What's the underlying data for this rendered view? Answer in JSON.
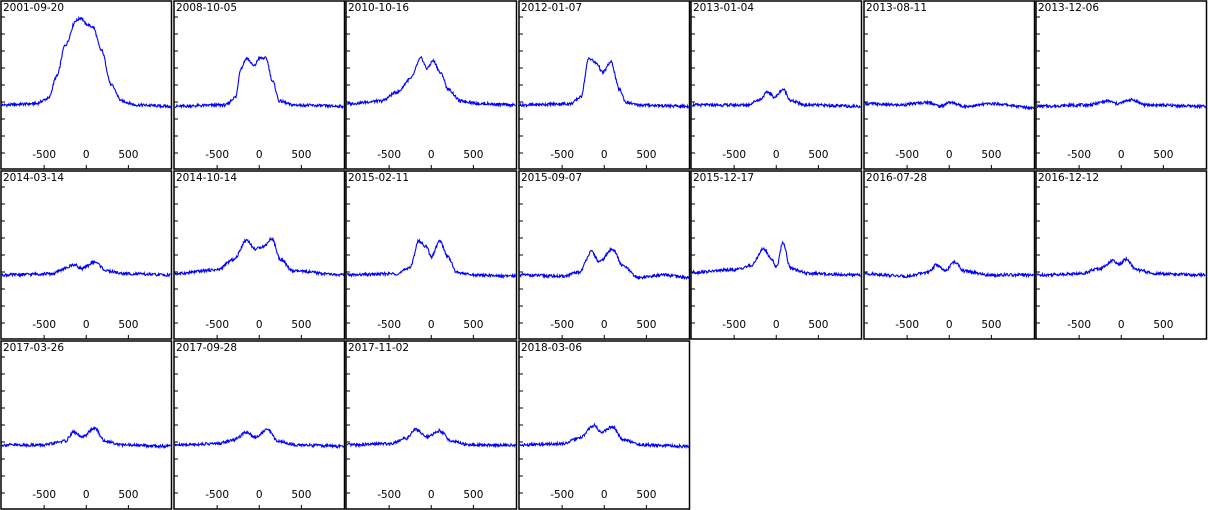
{
  "chart_data": {
    "type": "line",
    "color": "#0000ff",
    "xlim": [
      -1000,
      1000
    ],
    "ylim": [
      0,
      1
    ],
    "xticks": [
      -500,
      0,
      500
    ],
    "xtick_labels": [
      "-500",
      "0",
      "500"
    ],
    "panels": [
      {
        "title": "2001-09-20",
        "series": [
          {
            "values": [
              [
                -1000,
                0.3
              ],
              [
                -600,
                0.31
              ],
              [
                -450,
                0.35
              ],
              [
                -350,
                0.52
              ],
              [
                -250,
                0.76
              ],
              [
                -120,
                0.95
              ],
              [
                -60,
                0.97
              ],
              [
                0,
                0.92
              ],
              [
                80,
                0.9
              ],
              [
                180,
                0.72
              ],
              [
                300,
                0.45
              ],
              [
                420,
                0.33
              ],
              [
                600,
                0.3
              ],
              [
                1000,
                0.29
              ]
            ]
          }
        ]
      },
      {
        "title": "2008-10-05",
        "series": [
          {
            "values": [
              [
                -1000,
                0.29
              ],
              [
                -400,
                0.3
              ],
              [
                -280,
                0.36
              ],
              [
                -220,
                0.58
              ],
              [
                -150,
                0.66
              ],
              [
                -60,
                0.6
              ],
              [
                0,
                0.66
              ],
              [
                80,
                0.66
              ],
              [
                160,
                0.48
              ],
              [
                240,
                0.33
              ],
              [
                400,
                0.3
              ],
              [
                1000,
                0.29
              ]
            ]
          }
        ]
      },
      {
        "title": "2010-10-16",
        "series": [
          {
            "values": [
              [
                -1000,
                0.31
              ],
              [
                -600,
                0.33
              ],
              [
                -400,
                0.4
              ],
              [
                -250,
                0.5
              ],
              [
                -120,
                0.66
              ],
              [
                -50,
                0.58
              ],
              [
                20,
                0.64
              ],
              [
                120,
                0.54
              ],
              [
                200,
                0.42
              ],
              [
                350,
                0.33
              ],
              [
                600,
                0.31
              ],
              [
                1000,
                0.3
              ]
            ]
          }
        ]
      },
      {
        "title": "2012-01-07",
        "series": [
          {
            "values": [
              [
                -1000,
                0.3
              ],
              [
                -400,
                0.31
              ],
              [
                -280,
                0.36
              ],
              [
                -180,
                0.66
              ],
              [
                -90,
                0.62
              ],
              [
                -20,
                0.55
              ],
              [
                80,
                0.63
              ],
              [
                180,
                0.42
              ],
              [
                260,
                0.32
              ],
              [
                400,
                0.3
              ],
              [
                1000,
                0.29
              ]
            ]
          }
        ]
      },
      {
        "title": "2013-01-04",
        "series": [
          {
            "values": [
              [
                -1000,
                0.3
              ],
              [
                -350,
                0.3
              ],
              [
                -200,
                0.34
              ],
              [
                -100,
                0.4
              ],
              [
                -20,
                0.36
              ],
              [
                80,
                0.42
              ],
              [
                180,
                0.33
              ],
              [
                350,
                0.3
              ],
              [
                1000,
                0.29
              ]
            ]
          }
        ]
      },
      {
        "title": "2013-08-11",
        "series": [
          {
            "values": [
              [
                -1000,
                0.31
              ],
              [
                -600,
                0.3
              ],
              [
                -250,
                0.32
              ],
              [
                -100,
                0.29
              ],
              [
                0,
                0.32
              ],
              [
                200,
                0.29
              ],
              [
                500,
                0.31
              ],
              [
                1000,
                0.28
              ]
            ]
          }
        ]
      },
      {
        "title": "2013-12-06",
        "series": [
          {
            "values": [
              [
                -1000,
                0.29
              ],
              [
                -400,
                0.3
              ],
              [
                -150,
                0.33
              ],
              [
                -50,
                0.31
              ],
              [
                120,
                0.34
              ],
              [
                300,
                0.3
              ],
              [
                1000,
                0.29
              ]
            ]
          }
        ]
      },
      {
        "title": "2014-03-14",
        "series": [
          {
            "values": [
              [
                -1000,
                0.3
              ],
              [
                -400,
                0.31
              ],
              [
                -250,
                0.35
              ],
              [
                -150,
                0.38
              ],
              [
                -50,
                0.35
              ],
              [
                100,
                0.4
              ],
              [
                250,
                0.33
              ],
              [
                450,
                0.31
              ],
              [
                1000,
                0.3
              ]
            ]
          }
        ]
      },
      {
        "title": "2014-10-14",
        "series": [
          {
            "values": [
              [
                -1000,
                0.31
              ],
              [
                -500,
                0.34
              ],
              [
                -300,
                0.42
              ],
              [
                -150,
                0.57
              ],
              [
                -50,
                0.5
              ],
              [
                50,
                0.52
              ],
              [
                150,
                0.58
              ],
              [
                250,
                0.42
              ],
              [
                400,
                0.33
              ],
              [
                1000,
                0.3
              ]
            ]
          }
        ]
      },
      {
        "title": "2015-02-11",
        "series": [
          {
            "values": [
              [
                -1000,
                0.3
              ],
              [
                -400,
                0.31
              ],
              [
                -250,
                0.36
              ],
              [
                -150,
                0.56
              ],
              [
                -60,
                0.52
              ],
              [
                0,
                0.44
              ],
              [
                100,
                0.56
              ],
              [
                200,
                0.44
              ],
              [
                300,
                0.32
              ],
              [
                500,
                0.3
              ],
              [
                1000,
                0.29
              ]
            ]
          }
        ]
      },
      {
        "title": "2015-09-07",
        "series": [
          {
            "values": [
              [
                -1000,
                0.3
              ],
              [
                -500,
                0.29
              ],
              [
                -300,
                0.32
              ],
              [
                -150,
                0.48
              ],
              [
                -60,
                0.4
              ],
              [
                100,
                0.5
              ],
              [
                220,
                0.37
              ],
              [
                400,
                0.28
              ],
              [
                700,
                0.3
              ],
              [
                1000,
                0.28
              ]
            ]
          }
        ]
      },
      {
        "title": "2015-12-17",
        "series": [
          {
            "values": [
              [
                -1000,
                0.32
              ],
              [
                -500,
                0.34
              ],
              [
                -300,
                0.37
              ],
              [
                -150,
                0.5
              ],
              [
                -50,
                0.42
              ],
              [
                0,
                0.36
              ],
              [
                80,
                0.55
              ],
              [
                170,
                0.35
              ],
              [
                400,
                0.31
              ],
              [
                1000,
                0.3
              ]
            ]
          }
        ]
      },
      {
        "title": "2016-07-28",
        "series": [
          {
            "values": [
              [
                -1000,
                0.31
              ],
              [
                -500,
                0.29
              ],
              [
                -250,
                0.32
              ],
              [
                -150,
                0.38
              ],
              [
                -50,
                0.33
              ],
              [
                60,
                0.4
              ],
              [
                180,
                0.33
              ],
              [
                450,
                0.3
              ],
              [
                1000,
                0.3
              ]
            ]
          }
        ]
      },
      {
        "title": "2016-12-12",
        "series": [
          {
            "values": [
              [
                -1000,
                0.3
              ],
              [
                -500,
                0.31
              ],
              [
                -250,
                0.35
              ],
              [
                -100,
                0.41
              ],
              [
                -30,
                0.38
              ],
              [
                60,
                0.42
              ],
              [
                180,
                0.34
              ],
              [
                400,
                0.31
              ],
              [
                1000,
                0.3
              ]
            ]
          }
        ]
      },
      {
        "title": "2017-03-26",
        "series": [
          {
            "values": [
              [
                -1000,
                0.3
              ],
              [
                -500,
                0.3
              ],
              [
                -250,
                0.33
              ],
              [
                -150,
                0.4
              ],
              [
                -50,
                0.36
              ],
              [
                100,
                0.43
              ],
              [
                220,
                0.33
              ],
              [
                450,
                0.3
              ],
              [
                1000,
                0.29
              ]
            ]
          }
        ]
      },
      {
        "title": "2017-09-28",
        "series": [
          {
            "values": [
              [
                -1000,
                0.3
              ],
              [
                -500,
                0.31
              ],
              [
                -300,
                0.34
              ],
              [
                -150,
                0.4
              ],
              [
                -50,
                0.36
              ],
              [
                100,
                0.42
              ],
              [
                220,
                0.33
              ],
              [
                450,
                0.3
              ],
              [
                1000,
                0.29
              ]
            ]
          }
        ]
      },
      {
        "title": "2017-11-02",
        "series": [
          {
            "values": [
              [
                -1000,
                0.3
              ],
              [
                -500,
                0.31
              ],
              [
                -300,
                0.35
              ],
              [
                -180,
                0.42
              ],
              [
                -50,
                0.36
              ],
              [
                100,
                0.41
              ],
              [
                240,
                0.33
              ],
              [
                450,
                0.3
              ],
              [
                1000,
                0.3
              ]
            ]
          }
        ]
      },
      {
        "title": "2018-03-06",
        "series": [
          {
            "values": [
              [
                -1000,
                0.3
              ],
              [
                -500,
                0.31
              ],
              [
                -300,
                0.35
              ],
              [
                -120,
                0.45
              ],
              [
                -40,
                0.4
              ],
              [
                100,
                0.44
              ],
              [
                220,
                0.34
              ],
              [
                450,
                0.3
              ],
              [
                1000,
                0.29
              ]
            ]
          }
        ]
      }
    ]
  }
}
